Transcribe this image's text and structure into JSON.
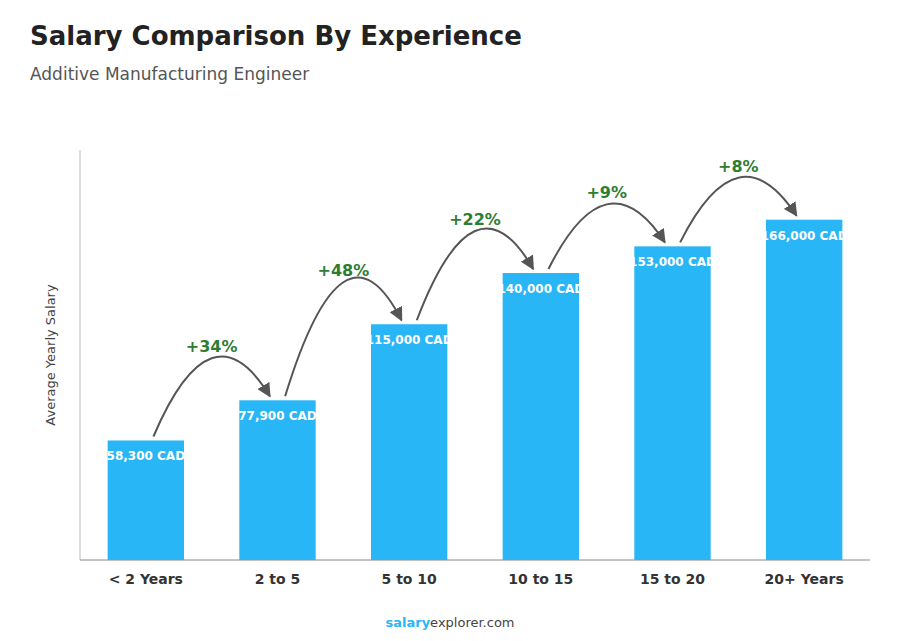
{
  "chart_data": {
    "type": "bar",
    "title": "Salary Comparison By Experience",
    "subtitle": "Additive Manufacturing Engineer",
    "ylabel": "Average Yearly Salary",
    "categories": [
      "< 2 Years",
      "2 to 5",
      "5 to 10",
      "10 to 15",
      "15 to 20",
      "20+ Years"
    ],
    "values": [
      58300,
      77900,
      115000,
      140000,
      153000,
      166000
    ],
    "value_labels": [
      "58,300 CAD",
      "77,900 CAD",
      "115,000 CAD",
      "140,000 CAD",
      "153,000 CAD",
      "166,000 CAD"
    ],
    "data_labels": true,
    "annotations": [
      "+34%",
      "+48%",
      "+22%",
      "+9%",
      "+8%"
    ],
    "footer": [
      "salary",
      "explorer.com"
    ],
    "color": "#29b6f6",
    "ylim": [
      0,
      200000
    ],
    "tick_labels": "x",
    "grid": false
  }
}
